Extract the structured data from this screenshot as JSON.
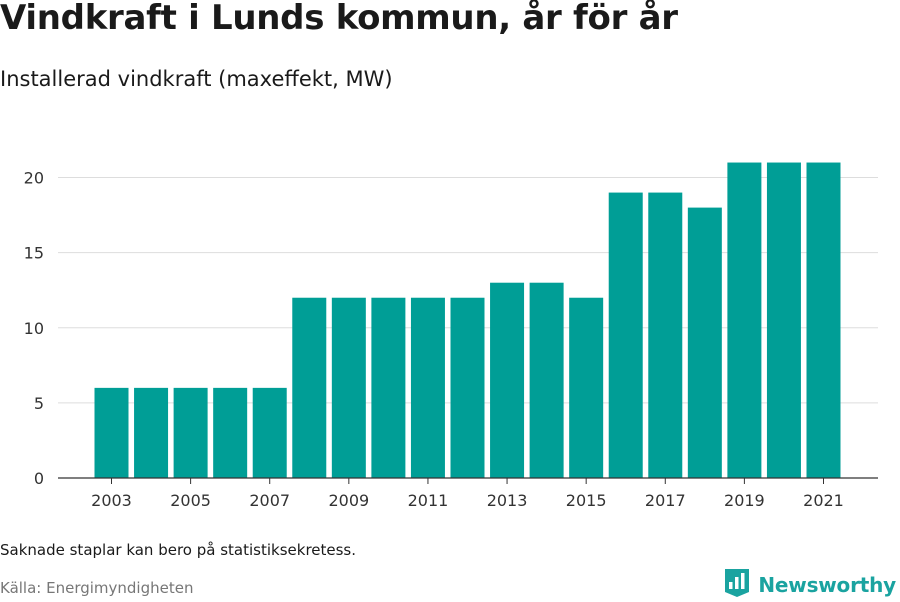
{
  "header": {
    "title": "Vindkraft i Lunds kommun, år för år",
    "subtitle": "Installerad vindkraft (maxeffekt, MW)"
  },
  "footer": {
    "note": "Saknade staplar kan bero på statistiksekretess.",
    "source": "Källa: Energimyndigheten",
    "brand": "Newsworthy",
    "brand_icon": "bar-chart-badge-icon"
  },
  "colors": {
    "bar": "#009E96",
    "grid": "#dddddd",
    "axis": "#333333",
    "brand": "#1aa3a0"
  },
  "chart_data": {
    "type": "bar",
    "title": "Vindkraft i Lunds kommun, år för år",
    "subtitle": "Installerad vindkraft (maxeffekt, MW)",
    "xlabel": "",
    "ylabel": "",
    "categories": [
      "2003",
      "2004",
      "2005",
      "2006",
      "2007",
      "2008",
      "2009",
      "2010",
      "2011",
      "2012",
      "2013",
      "2014",
      "2015",
      "2016",
      "2017",
      "2018",
      "2019",
      "2020",
      "2021"
    ],
    "x_tick_labels": [
      "2003",
      "2005",
      "2007",
      "2009",
      "2011",
      "2013",
      "2015",
      "2017",
      "2019",
      "2021"
    ],
    "values": [
      6,
      6,
      6,
      6,
      6,
      12,
      12,
      12,
      12,
      12,
      13,
      13,
      12,
      19,
      19,
      18,
      21,
      21,
      21
    ],
    "ylim": [
      0,
      22.5
    ],
    "y_ticks": [
      0,
      5,
      10,
      15,
      20
    ],
    "grid": true,
    "legend": "none"
  }
}
